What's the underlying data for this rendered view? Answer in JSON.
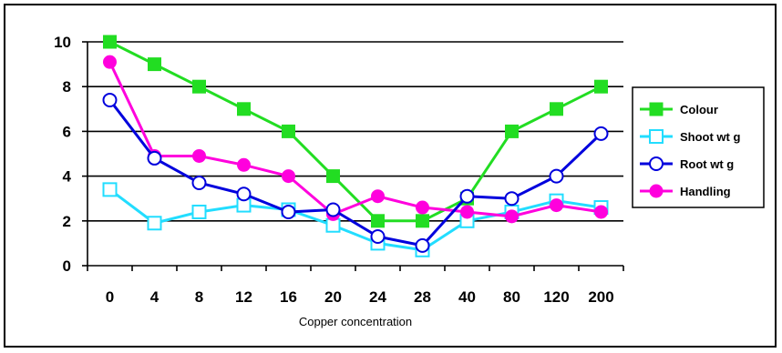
{
  "chart_data": {
    "type": "line",
    "xlabel": "Copper concentration",
    "ylabel": "",
    "title": "",
    "categories": [
      "0",
      "4",
      "8",
      "12",
      "16",
      "20",
      "24",
      "28",
      "40",
      "80",
      "120",
      "200"
    ],
    "ylim": [
      0,
      10
    ],
    "yticks": [
      "0",
      "2",
      "4",
      "6",
      "8",
      "10"
    ],
    "grid": "horizontal",
    "legend_position": "right",
    "series": [
      {
        "name": "Colour",
        "color": "#22DD22",
        "marker": "filled-square",
        "values": [
          10,
          9,
          8,
          7,
          6,
          4,
          2,
          2,
          3,
          6,
          7,
          8
        ]
      },
      {
        "name": "Shoot wt g",
        "color": "#22DDFF",
        "marker": "open-square",
        "values": [
          3.4,
          1.9,
          2.4,
          2.7,
          2.5,
          1.8,
          1.0,
          0.7,
          2.0,
          2.4,
          2.9,
          2.6
        ]
      },
      {
        "name": "Root wt g",
        "color": "#0000DD",
        "marker": "open-circle",
        "values": [
          7.4,
          4.8,
          3.7,
          3.2,
          2.4,
          2.5,
          1.3,
          0.9,
          3.1,
          3.0,
          4.0,
          5.9
        ]
      },
      {
        "name": "Handling",
        "color": "#FF00DD",
        "marker": "filled-circle",
        "values": [
          9.1,
          4.9,
          4.9,
          4.5,
          4.0,
          2.3,
          3.1,
          2.6,
          2.4,
          2.2,
          2.7,
          2.4
        ]
      }
    ]
  }
}
